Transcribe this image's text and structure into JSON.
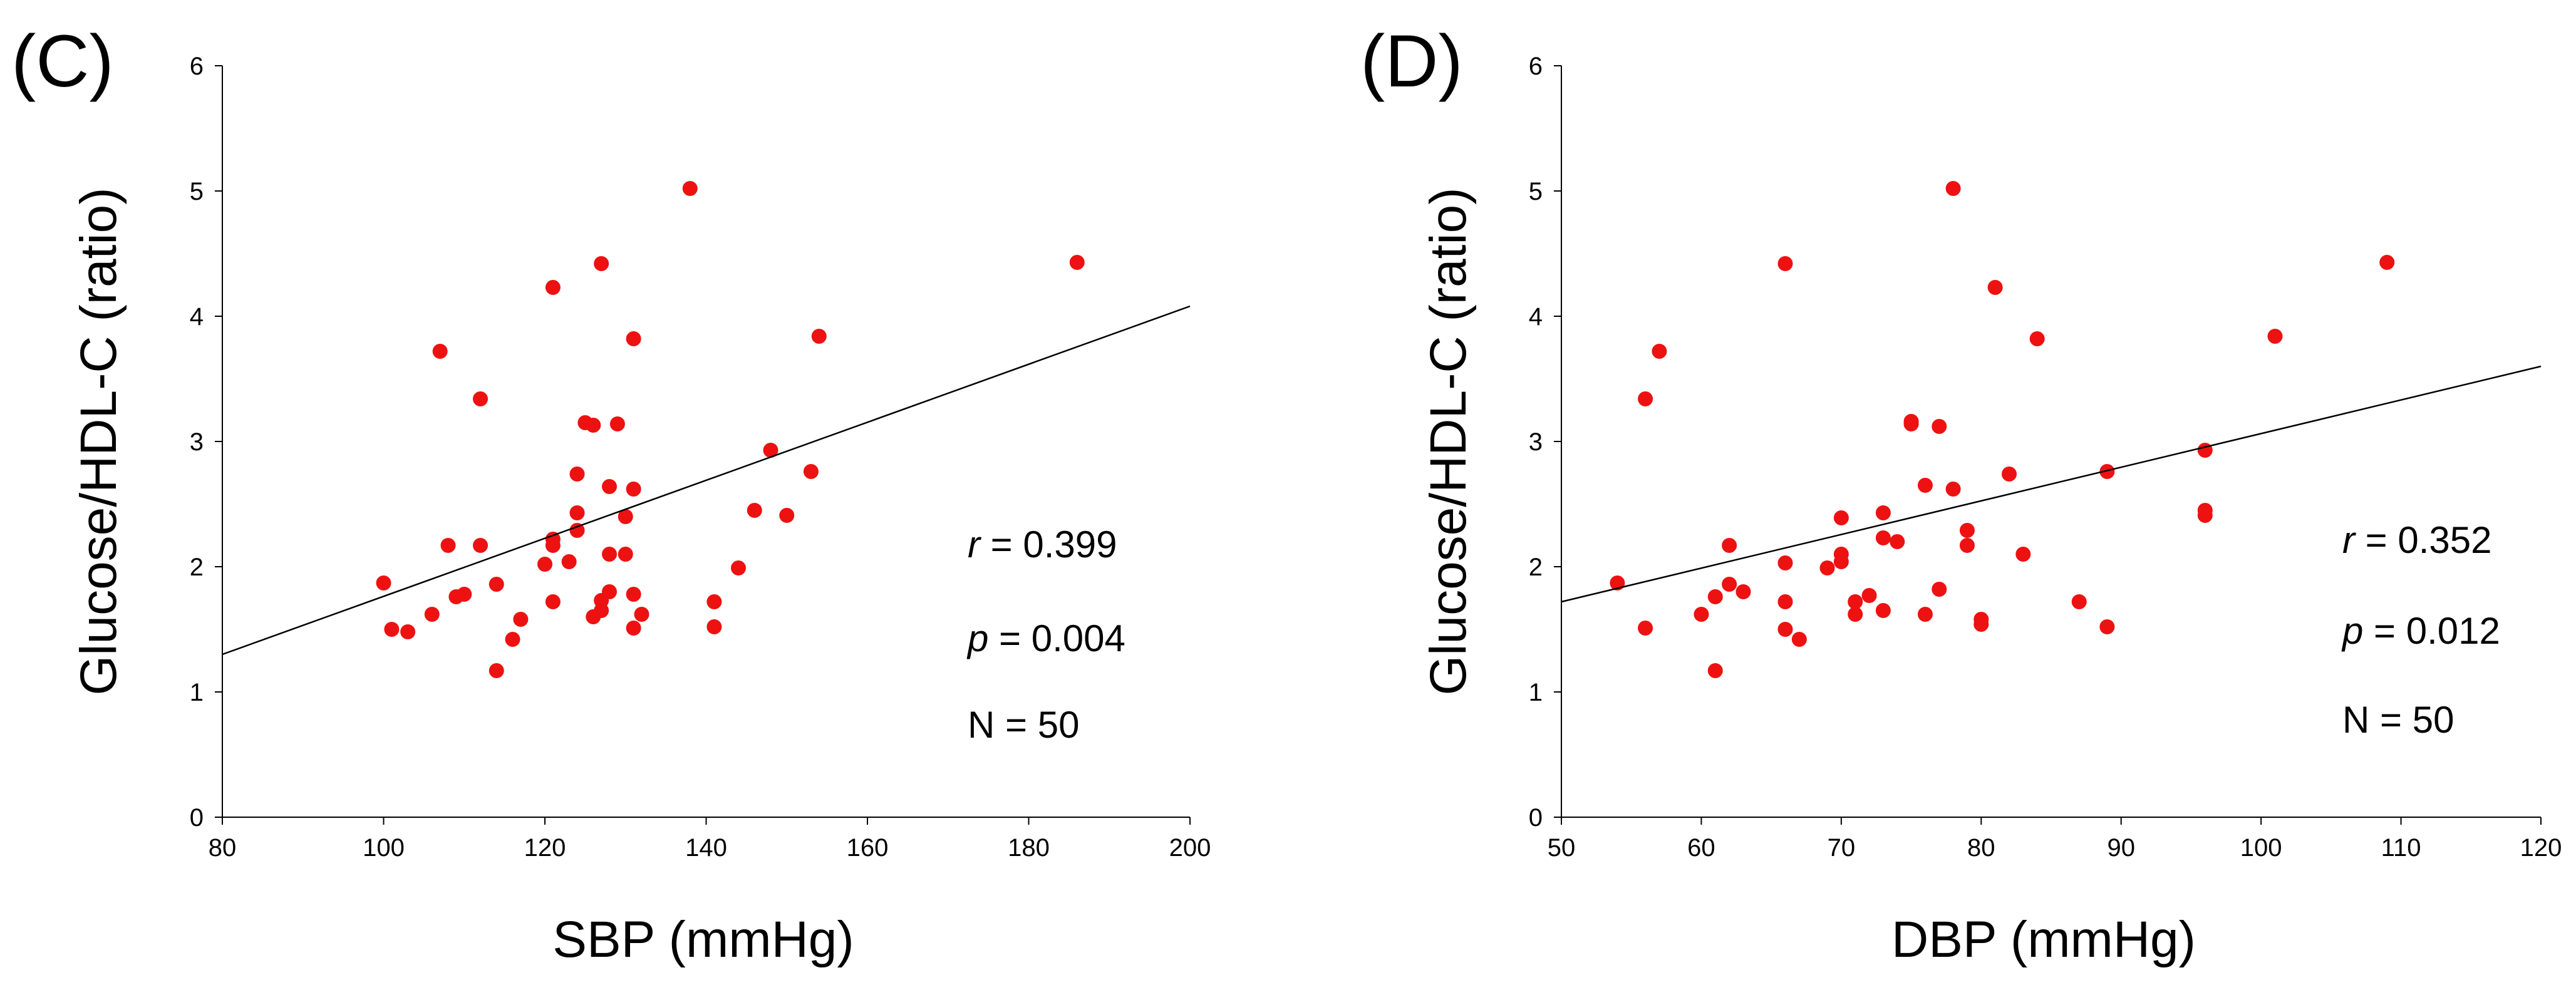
{
  "colors": {
    "point": "#ee1111",
    "axis": "#000000",
    "background": "#ffffff"
  },
  "chart_data": [
    {
      "type": "scatter",
      "panel_label": "(C)",
      "title": "",
      "xlabel": "SBP (mmHg)",
      "ylabel": "Glucose/HDL-C (ratio)",
      "xlim": [
        80,
        200
      ],
      "ylim": [
        0,
        6
      ],
      "xticks": [
        80,
        100,
        120,
        140,
        160,
        180,
        200
      ],
      "yticks": [
        0,
        1,
        2,
        3,
        4,
        5,
        6
      ],
      "regression": {
        "x": [
          80,
          200
        ],
        "y": [
          1.3,
          4.08
        ]
      },
      "stats": {
        "r_sym": "r",
        "r_rest": " =  0.399",
        "p_sym": "p",
        "p_rest": " = 0.004",
        "n": "N = 50"
      },
      "grid": false,
      "points": [
        [
          100,
          1.87
        ],
        [
          101,
          1.5
        ],
        [
          103,
          1.48
        ],
        [
          106,
          1.62
        ],
        [
          107,
          3.72
        ],
        [
          108,
          2.17
        ],
        [
          109,
          1.76
        ],
        [
          110,
          1.78
        ],
        [
          112,
          3.34
        ],
        [
          112,
          2.17
        ],
        [
          114,
          1.86
        ],
        [
          114,
          1.17
        ],
        [
          116,
          1.42
        ],
        [
          117,
          1.58
        ],
        [
          120,
          2.02
        ],
        [
          121,
          2.22
        ],
        [
          121,
          2.17
        ],
        [
          121,
          1.72
        ],
        [
          121,
          4.23
        ],
        [
          123,
          2.04
        ],
        [
          124,
          2.74
        ],
        [
          124,
          2.43
        ],
        [
          124,
          2.29
        ],
        [
          125,
          3.15
        ],
        [
          126,
          3.13
        ],
        [
          126,
          1.6
        ],
        [
          127,
          1.73
        ],
        [
          127,
          1.65
        ],
        [
          127,
          4.42
        ],
        [
          128,
          2.64
        ],
        [
          128,
          2.1
        ],
        [
          128,
          1.8
        ],
        [
          129,
          3.14
        ],
        [
          130,
          2.4
        ],
        [
          130,
          2.1
        ],
        [
          131,
          3.82
        ],
        [
          131,
          2.62
        ],
        [
          131,
          1.78
        ],
        [
          131,
          1.51
        ],
        [
          132,
          1.62
        ],
        [
          138,
          5.02
        ],
        [
          141,
          1.72
        ],
        [
          141,
          1.52
        ],
        [
          144,
          1.99
        ],
        [
          146,
          2.45
        ],
        [
          148,
          2.93
        ],
        [
          150,
          2.41
        ],
        [
          153,
          2.76
        ],
        [
          154,
          3.84
        ],
        [
          186,
          4.43
        ]
      ]
    },
    {
      "type": "scatter",
      "panel_label": "(D)",
      "title": "",
      "xlabel": "DBP (mmHg)",
      "ylabel": "Glucose/HDL-C (ratio)",
      "xlim": [
        50,
        120
      ],
      "ylim": [
        0,
        6
      ],
      "xticks": [
        50,
        60,
        70,
        80,
        90,
        100,
        110,
        120
      ],
      "yticks": [
        0,
        1,
        2,
        3,
        4,
        5,
        6
      ],
      "regression": {
        "x": [
          50,
          120
        ],
        "y": [
          1.72,
          3.6
        ]
      },
      "stats": {
        "r_sym": "r",
        "r_rest": " =   0.352",
        "p_sym": "p",
        "p_rest": " = 0.012",
        "n": "N = 50"
      },
      "grid": false,
      "points": [
        [
          54,
          1.87
        ],
        [
          56,
          3.34
        ],
        [
          56,
          1.51
        ],
        [
          57,
          3.72
        ],
        [
          60,
          1.62
        ],
        [
          61,
          1.76
        ],
        [
          61,
          1.17
        ],
        [
          62,
          2.17
        ],
        [
          62,
          1.86
        ],
        [
          63,
          1.8
        ],
        [
          66,
          4.42
        ],
        [
          66,
          2.03
        ],
        [
          66,
          1.72
        ],
        [
          66,
          1.5
        ],
        [
          67,
          1.42
        ],
        [
          69,
          1.99
        ],
        [
          70,
          2.39
        ],
        [
          70,
          2.1
        ],
        [
          70,
          2.04
        ],
        [
          71,
          1.72
        ],
        [
          71,
          1.62
        ],
        [
          72,
          1.77
        ],
        [
          73,
          2.43
        ],
        [
          73,
          2.23
        ],
        [
          73,
          1.65
        ],
        [
          74,
          2.2
        ],
        [
          75,
          3.16
        ],
        [
          75,
          3.14
        ],
        [
          76,
          2.65
        ],
        [
          76,
          1.62
        ],
        [
          77,
          3.12
        ],
        [
          77,
          1.82
        ],
        [
          78,
          5.02
        ],
        [
          78,
          2.62
        ],
        [
          79,
          2.29
        ],
        [
          79,
          2.17
        ],
        [
          80,
          1.58
        ],
        [
          80,
          1.54
        ],
        [
          81,
          4.23
        ],
        [
          82,
          2.74
        ],
        [
          83,
          2.1
        ],
        [
          84,
          3.82
        ],
        [
          87,
          1.72
        ],
        [
          89,
          2.76
        ],
        [
          89,
          1.52
        ],
        [
          96,
          2.93
        ],
        [
          96,
          2.45
        ],
        [
          96,
          2.41
        ],
        [
          101,
          3.84
        ],
        [
          109,
          4.43
        ]
      ]
    }
  ]
}
